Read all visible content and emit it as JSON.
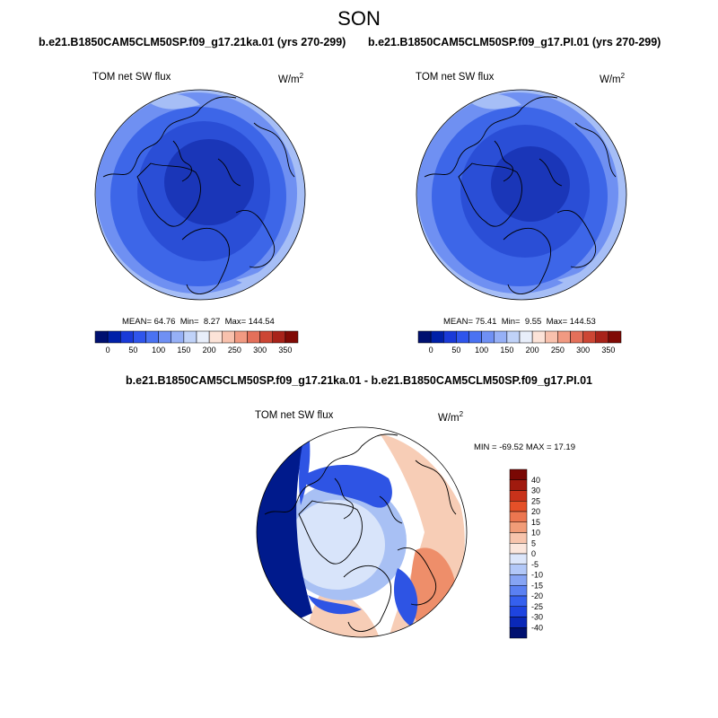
{
  "season": "SON",
  "panels": {
    "left": {
      "case_title": "b.e21.B1850CAM5CLM50SP.f09_g17.21ka.01 (yrs 270-299)",
      "variable": "TOM net SW flux",
      "units_base": "W/m",
      "units_exp": "2",
      "mean_label": "MEAN=",
      "mean_value": "64.76",
      "min_label": "Min=",
      "min_value": "8.27",
      "max_label": "Max=",
      "max_value": "144.54"
    },
    "right": {
      "case_title": "b.e21.B1850CAM5CLM50SP.f09_g17.PI.01 (yrs 270-299)",
      "variable": "TOM net SW flux",
      "units_base": "W/m",
      "units_exp": "2",
      "mean_label": "MEAN=",
      "mean_value": "75.41",
      "min_label": "Min=",
      "min_value": "9.55",
      "max_label": "Max=",
      "max_value": "144.53"
    },
    "diff": {
      "case_title": "b.e21.B1850CAM5CLM50SP.f09_g17.21ka.01 - b.e21.B1850CAM5CLM50SP.f09_g17.PI.01",
      "variable": "TOM net SW flux",
      "units_base": "W/m",
      "units_exp": "2",
      "minmax_text": "MIN = -69.52 MAX =  17.19"
    }
  },
  "colorbars": {
    "abs": {
      "colors": [
        "#001070",
        "#0020a8",
        "#1a3ad8",
        "#2f55ec",
        "#4a72f2",
        "#6f90f4",
        "#96b0f6",
        "#c0d2f8",
        "#e8eefa",
        "#fce3d8",
        "#f8c1ad",
        "#f19a82",
        "#e4705a",
        "#cc4634",
        "#a8231a",
        "#800a05"
      ],
      "tick_labels": [
        "0",
        "50",
        "100",
        "150",
        "200",
        "250",
        "300",
        "350"
      ]
    },
    "diff": {
      "colors": [
        "#001070",
        "#0a28b8",
        "#1e44e0",
        "#3560ee",
        "#5a80f2",
        "#86a4f4",
        "#b2c8f8",
        "#dce6fa",
        "#fbe6dc",
        "#f7c4ac",
        "#f19c78",
        "#ec7650",
        "#e45028",
        "#c8321a",
        "#a01a0e",
        "#7a0804"
      ],
      "tick_labels": [
        "40",
        "30",
        "25",
        "20",
        "15",
        "10",
        "5",
        "0",
        "-5",
        "-10",
        "-15",
        "-20",
        "-25",
        "-30",
        "-40"
      ]
    }
  },
  "map_colors": {
    "abs_core": "#1a36b8",
    "abs_mid": "#2a4ed6",
    "abs_outer": "#3d66e8",
    "abs_edge": "#6f90f2",
    "abs_rim": "#a6bef6",
    "diff_white": "#ffffff",
    "diff_pale_blue": "#d8e4fa",
    "diff_lt_blue": "#a8c0f4",
    "diff_blue": "#2e54e4",
    "diff_dark_blue": "#001a8c",
    "diff_peach": "#f7cdb6",
    "diff_orange": "#ee8e6a",
    "coast": "#000000"
  }
}
